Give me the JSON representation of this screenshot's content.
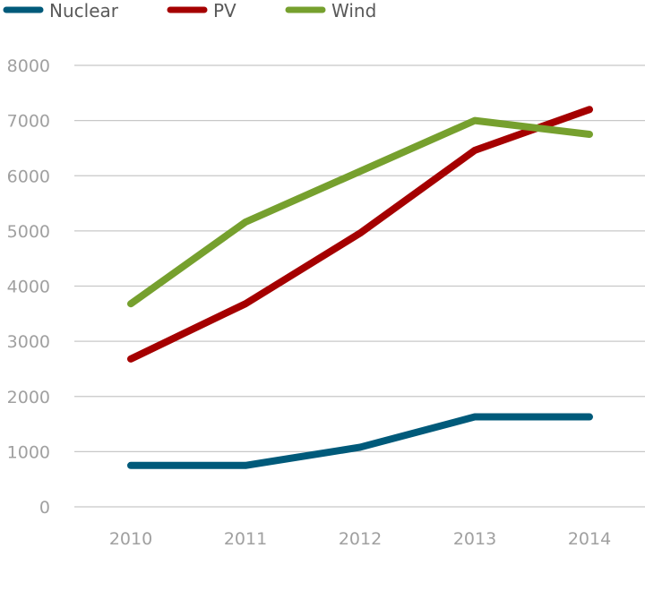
{
  "chart_data": {
    "type": "line",
    "title": "",
    "xlabel": "",
    "ylabel": "",
    "categories": [
      "2010",
      "2011",
      "2012",
      "2013",
      "2014"
    ],
    "ylim": [
      0,
      8000
    ],
    "yticks": [
      "0",
      "1000",
      "2000",
      "3000",
      "4000",
      "5000",
      "6000",
      "7000",
      "8000"
    ],
    "grid": true,
    "legend_position": "top-left",
    "series": [
      {
        "name": "Nuclear",
        "color": "#005a7a",
        "values": [
          750,
          750,
          1080,
          1630,
          1630
        ]
      },
      {
        "name": "PV",
        "color": "#a50000",
        "values": [
          2680,
          3680,
          4960,
          6460,
          7200
        ]
      },
      {
        "name": "Wind",
        "color": "#76a02e",
        "values": [
          3680,
          5160,
          6080,
          7000,
          6750
        ]
      }
    ]
  }
}
